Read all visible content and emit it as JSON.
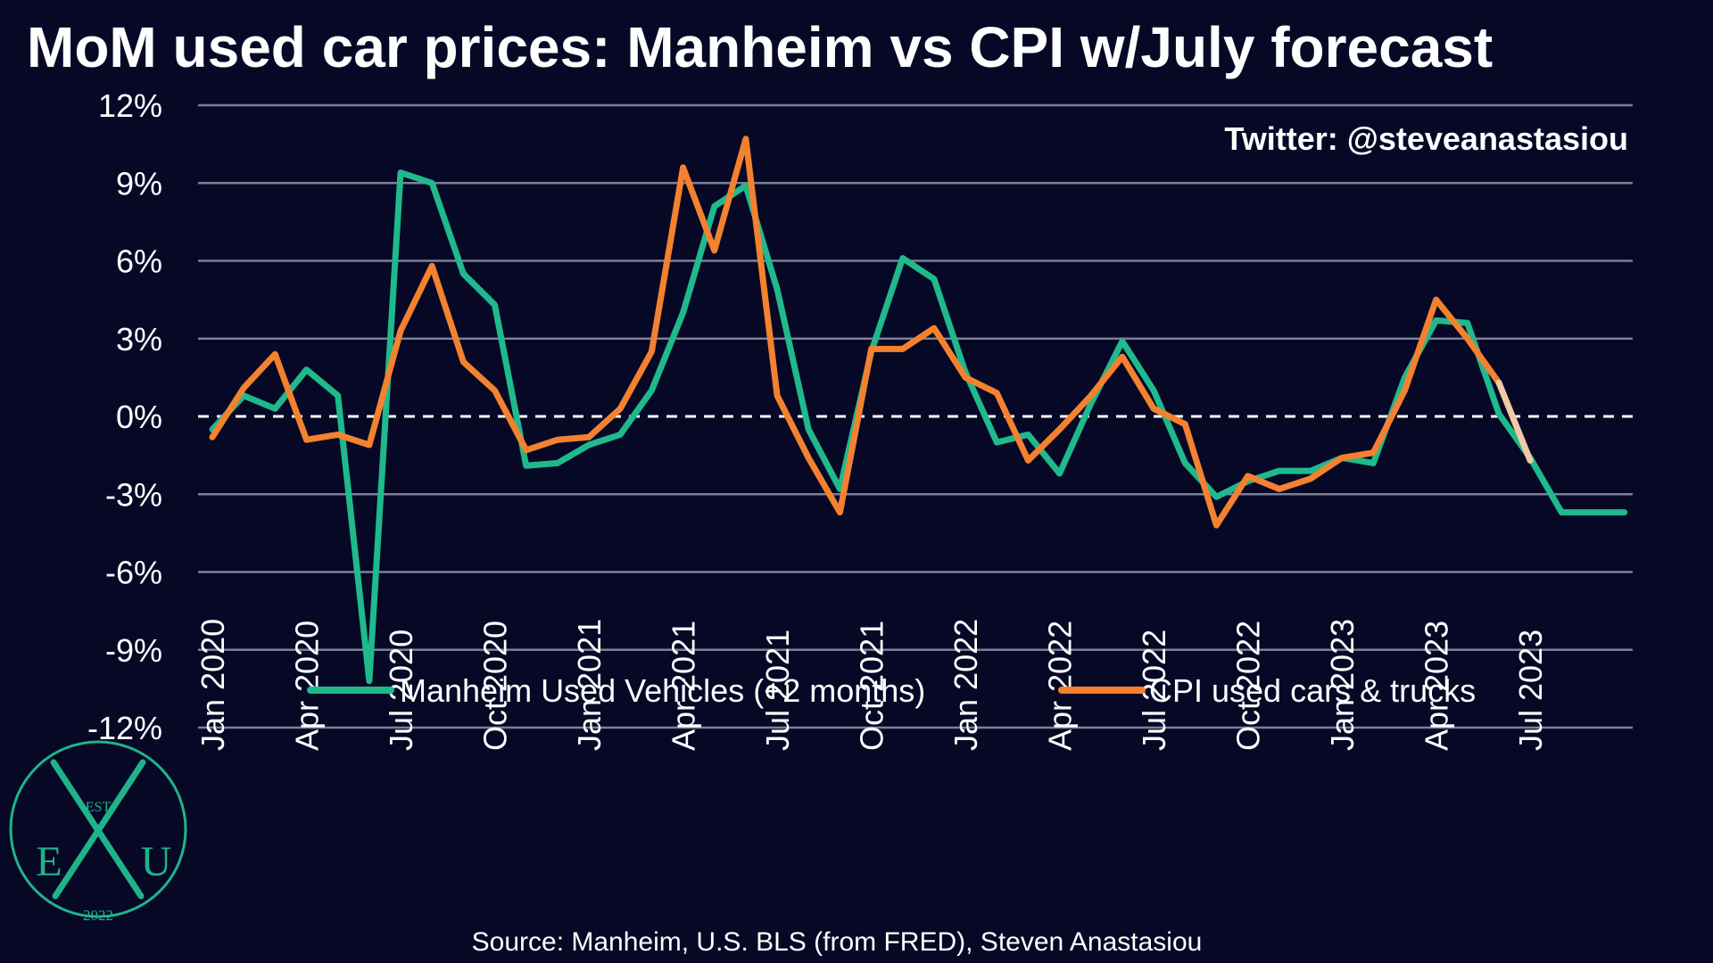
{
  "title": "MoM used car prices: Manheim vs CPI w/July forecast",
  "note": "Twitter: @steveanastasiou",
  "source": "Source: Manheim, U.S. BLS (from FRED), Steven Anastasiou",
  "logo": {
    "top": "EST",
    "left": "E",
    "right": "U",
    "bottom": "2022"
  },
  "colors": {
    "background": "#060826",
    "manheim": "#1fb98c",
    "cpi": "#f3812f",
    "forecast": "#f2c9a6",
    "grid": "#7d7f96",
    "zero": "#ffffff",
    "logo": "#20b38a"
  },
  "chart_data": {
    "type": "line",
    "title": "MoM used car prices: Manheim vs CPI w/July forecast",
    "xlabel": "",
    "ylabel": "",
    "ylim": [
      -12,
      12
    ],
    "yticks": [
      12,
      9,
      6,
      3,
      0,
      -3,
      -6,
      -9,
      -12
    ],
    "ytick_labels": [
      "12%",
      "9%",
      "6%",
      "3%",
      "0%",
      "-3%",
      "-6%",
      "-9%",
      "-12%"
    ],
    "x_start": "2020-01",
    "xtick_labels": [
      "Jan 2020",
      "Apr 2020",
      "Jul 2020",
      "Oct 2020",
      "Jan 2021",
      "Apr 2021",
      "Jul 2021",
      "Oct 2021",
      "Jan 2022",
      "Apr 2022",
      "Jul 2022",
      "Oct 2022",
      "Jan 2023",
      "Apr 2023",
      "Jul 2023"
    ],
    "grid": true,
    "zero_line": "dashed",
    "legend_position": "bottom-center",
    "series": [
      {
        "name": "Manheim Used Vehicles (+2 months)",
        "color": "#1fb98c",
        "values": [
          -0.5,
          0.8,
          0.3,
          1.8,
          0.8,
          -10.2,
          9.4,
          9.0,
          5.5,
          4.3,
          -1.9,
          -1.8,
          -1.1,
          -0.7,
          1.0,
          4.0,
          8.1,
          8.9,
          4.9,
          -0.5,
          -2.8,
          2.5,
          6.1,
          5.3,
          1.7,
          -1.0,
          -0.7,
          -2.2,
          0.5,
          2.9,
          1.0,
          -1.8,
          -3.1,
          -2.5,
          -2.1,
          -2.1,
          -1.6,
          -1.8,
          1.5,
          3.7,
          3.6,
          0.1,
          -1.6,
          -3.7,
          -3.7,
          -3.7
        ]
      },
      {
        "name": "CPI used cars & trucks",
        "color": "#f3812f",
        "values": [
          -0.8,
          1.1,
          2.4,
          -0.9,
          -0.7,
          -1.1,
          3.3,
          5.8,
          2.1,
          1.0,
          -1.3,
          -0.9,
          -0.8,
          0.3,
          2.5,
          9.6,
          6.4,
          10.7,
          0.8,
          -1.6,
          -3.7,
          2.6,
          2.6,
          3.4,
          1.5,
          0.9,
          -1.7,
          -0.5,
          0.8,
          2.3,
          0.3,
          -0.3,
          -4.2,
          -2.3,
          -2.8,
          -2.4,
          -1.6,
          -1.4,
          1.0,
          4.5,
          3.0,
          1.3
        ]
      },
      {
        "name": "",
        "color": "#f2c9a6",
        "forecast": true,
        "values": [
          null,
          null,
          null,
          null,
          null,
          null,
          null,
          null,
          null,
          null,
          null,
          null,
          null,
          null,
          null,
          null,
          null,
          null,
          null,
          null,
          null,
          null,
          null,
          null,
          null,
          null,
          null,
          null,
          null,
          null,
          null,
          null,
          null,
          null,
          null,
          null,
          null,
          null,
          null,
          null,
          null,
          1.3,
          -1.7
        ]
      }
    ]
  }
}
